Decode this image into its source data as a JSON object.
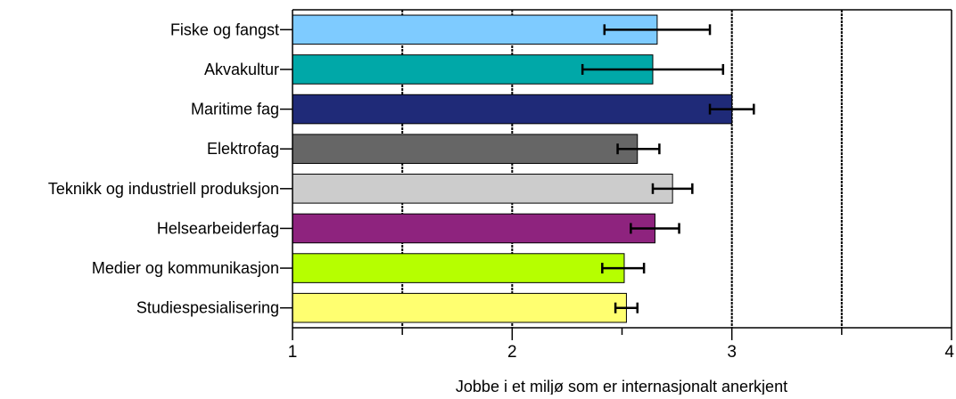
{
  "chart_data": {
    "type": "bar",
    "orientation": "horizontal",
    "categories": [
      "Fiske og fangst",
      "Akvakultur",
      "Maritime fag",
      "Elektrofag",
      "Teknikk og industriell produksjon",
      "Helsearbeiderfag",
      "Medier og kommunikasjon",
      "Studiespesialisering"
    ],
    "values": [
      2.66,
      2.64,
      3.0,
      2.57,
      2.73,
      2.65,
      2.51,
      2.52
    ],
    "error_low": [
      2.42,
      2.32,
      2.9,
      2.48,
      2.64,
      2.54,
      2.41,
      2.47
    ],
    "error_high": [
      2.9,
      2.96,
      3.1,
      2.67,
      2.82,
      2.76,
      2.6,
      2.57
    ],
    "colors": [
      "#7ecbff",
      "#00a8a8",
      "#1f2a78",
      "#666666",
      "#cccccc",
      "#8e237e",
      "#b6ff00",
      "#ffff70"
    ],
    "xlabel": "Jobbe i et miljø som er internasjonalt anerkjent",
    "ylabel": "",
    "title": "",
    "xlim": [
      1,
      4
    ],
    "xticks": [
      "1",
      "2",
      "3",
      "4"
    ],
    "grid": "vertical dashed at 1.5, 2, 3, 3.5"
  }
}
